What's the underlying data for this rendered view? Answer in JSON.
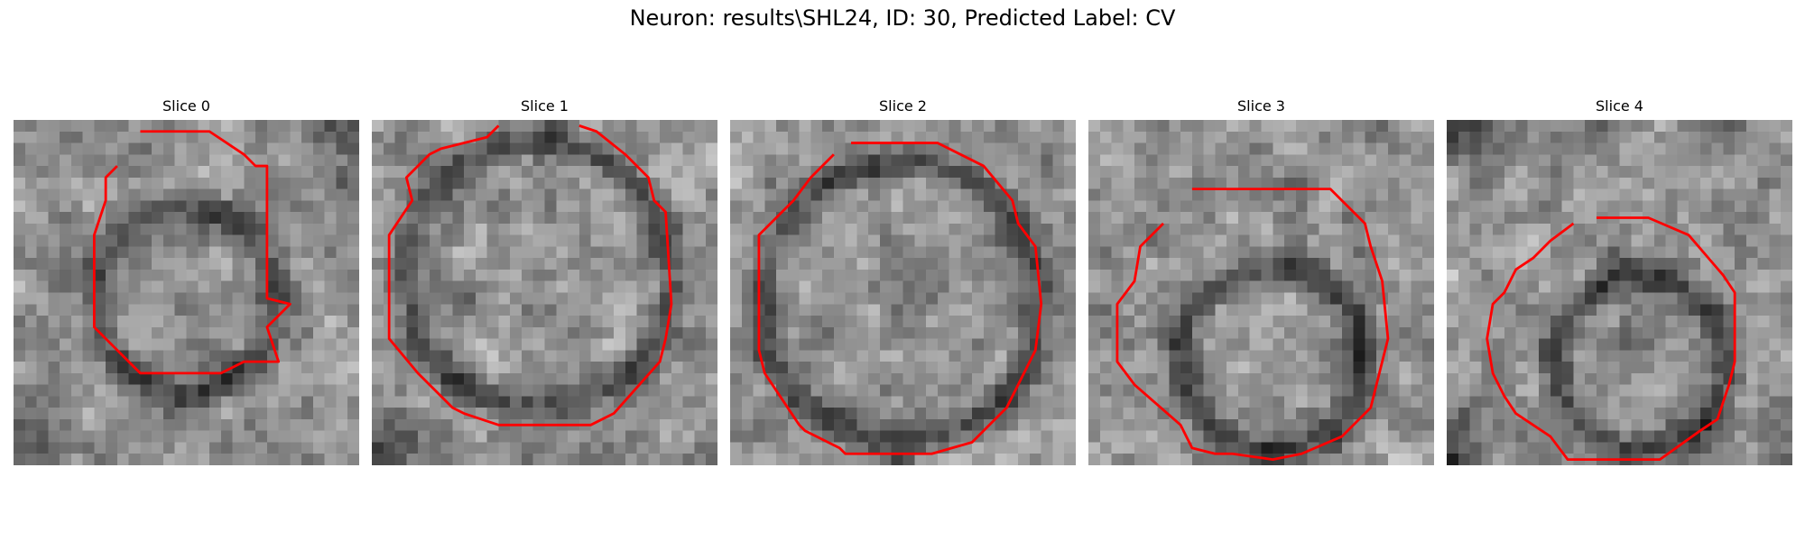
{
  "figure": {
    "title": "Neuron: results\\SHL24, ID: 30, Predicted Label: CV",
    "contour_color": "#ff0000",
    "colormap": "grayscale",
    "grid_size": 30
  },
  "panels": [
    {
      "title": "Slice 0",
      "ring": {
        "cx": 15.0,
        "cy": 15.5,
        "r": 8.0
      },
      "dark_corners": [
        "bottom-left",
        "top-right"
      ],
      "contour": [
        [
          11.0,
          1.0
        ],
        [
          17.0,
          1.0
        ],
        [
          20.0,
          3.0
        ],
        [
          21.0,
          4.0
        ],
        [
          22.0,
          4.0
        ],
        [
          22.0,
          15.5
        ],
        [
          24.0,
          16.0
        ],
        [
          22.0,
          18.0
        ],
        [
          23.0,
          21.0
        ],
        [
          20.0,
          21.0
        ],
        [
          18.0,
          22.0
        ],
        [
          17.0,
          22.0
        ],
        [
          11.0,
          22.0
        ],
        [
          10.0,
          21.0
        ],
        [
          8.0,
          19.0
        ],
        [
          7.0,
          18.0
        ],
        [
          7.0,
          10.0
        ],
        [
          8.0,
          7.0
        ],
        [
          8.0,
          5.0
        ],
        [
          9.0,
          4.0
        ]
      ]
    },
    {
      "title": "Slice 1",
      "ring": {
        "cx": 14.5,
        "cy": 13.5,
        "r": 11.5
      },
      "dark_corners": [
        "bottom-left"
      ],
      "contour": [
        [
          11.0,
          0.5
        ],
        [
          10.0,
          1.5
        ],
        [
          6.0,
          2.5
        ],
        [
          5.0,
          3.0
        ],
        [
          3.0,
          5.0
        ],
        [
          3.5,
          7.0
        ],
        [
          1.5,
          10.0
        ],
        [
          1.5,
          19.0
        ],
        [
          4.0,
          22.0
        ],
        [
          7.0,
          25.0
        ],
        [
          8.0,
          25.5
        ],
        [
          11.0,
          26.5
        ],
        [
          19.0,
          26.5
        ],
        [
          21.0,
          25.5
        ],
        [
          25.0,
          21.0
        ],
        [
          25.5,
          19.0
        ],
        [
          26.0,
          16.0
        ],
        [
          25.5,
          8.0
        ],
        [
          24.5,
          7.0
        ],
        [
          24.0,
          5.0
        ],
        [
          22.0,
          3.0
        ],
        [
          19.5,
          1.0
        ],
        [
          18.0,
          0.5
        ]
      ]
    },
    {
      "title": "Slice 2",
      "ring": {
        "cx": 14.8,
        "cy": 15.8,
        "r": 12.2
      },
      "dark_corners": [],
      "contour": [
        [
          10.5,
          2.0
        ],
        [
          18.0,
          2.0
        ],
        [
          22.0,
          4.0
        ],
        [
          24.5,
          7.0
        ],
        [
          25.0,
          9.0
        ],
        [
          26.5,
          11.0
        ],
        [
          27.0,
          16.0
        ],
        [
          26.5,
          20.0
        ],
        [
          25.0,
          23.0
        ],
        [
          24.0,
          25.0
        ],
        [
          21.0,
          28.0
        ],
        [
          17.5,
          29.0
        ],
        [
          10.0,
          29.0
        ],
        [
          9.5,
          28.5
        ],
        [
          6.5,
          27.0
        ],
        [
          6.0,
          26.5
        ],
        [
          5.0,
          25.0
        ],
        [
          3.0,
          22.0
        ],
        [
          2.5,
          20.0
        ],
        [
          2.5,
          10.0
        ],
        [
          4.5,
          8.0
        ],
        [
          5.5,
          7.0
        ],
        [
          7.0,
          5.0
        ],
        [
          9.0,
          3.0
        ]
      ]
    },
    {
      "title": "Slice 3",
      "ring": {
        "cx": 16.0,
        "cy": 21.0,
        "r": 8.0
      },
      "dark_corners": [],
      "contour": [
        [
          9.0,
          6.0
        ],
        [
          21.0,
          6.0
        ],
        [
          22.5,
          7.5
        ],
        [
          24.0,
          9.0
        ],
        [
          24.5,
          11.0
        ],
        [
          25.5,
          14.0
        ],
        [
          26.0,
          19.0
        ],
        [
          25.0,
          23.0
        ],
        [
          24.5,
          25.0
        ],
        [
          22.0,
          27.5
        ],
        [
          18.5,
          29.0
        ],
        [
          16.0,
          29.5
        ],
        [
          12.5,
          29.0
        ],
        [
          11.0,
          29.0
        ],
        [
          9.0,
          28.5
        ],
        [
          8.0,
          26.5
        ],
        [
          4.0,
          23.0
        ],
        [
          2.5,
          21.0
        ],
        [
          2.5,
          16.0
        ],
        [
          4.0,
          14.0
        ],
        [
          4.5,
          11.0
        ],
        [
          6.5,
          9.0
        ]
      ]
    },
    {
      "title": "Slice 4",
      "ring": {
        "cx": 17.0,
        "cy": 21.0,
        "r": 7.5
      },
      "dark_corners": [
        "bottom-left",
        "top-left"
      ],
      "contour": [
        [
          13.0,
          8.5
        ],
        [
          17.5,
          8.5
        ],
        [
          21.0,
          10.0
        ],
        [
          24.0,
          13.5
        ],
        [
          25.0,
          15.0
        ],
        [
          25.0,
          21.0
        ],
        [
          24.5,
          23.0
        ],
        [
          23.5,
          26.0
        ],
        [
          22.0,
          27.0
        ],
        [
          18.5,
          29.5
        ],
        [
          10.5,
          29.5
        ],
        [
          9.0,
          27.5
        ],
        [
          6.0,
          25.5
        ],
        [
          5.0,
          24.0
        ],
        [
          4.0,
          22.0
        ],
        [
          3.5,
          19.0
        ],
        [
          4.0,
          16.0
        ],
        [
          5.0,
          15.0
        ],
        [
          6.0,
          13.0
        ],
        [
          7.5,
          12.0
        ],
        [
          9.0,
          10.5
        ],
        [
          11.0,
          9.0
        ]
      ]
    }
  ]
}
